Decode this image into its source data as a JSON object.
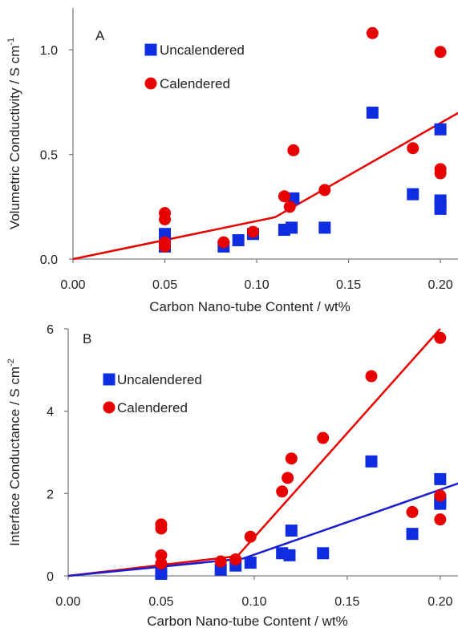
{
  "chart_data": [
    {
      "type": "scatter",
      "panel_label": "A",
      "xlabel": "Carbon Nano-tube Content / wt%",
      "ylabel": "Volumetric Conductivity / S cm-1",
      "ylabel_parts": {
        "main": "Volumetric Conductivity / S cm",
        "sup": "-1"
      },
      "xlim": [
        0,
        0.21
      ],
      "ylim": [
        0,
        1.2
      ],
      "x_ticks": [
        0,
        0.05,
        0.1,
        0.15,
        0.2
      ],
      "x_tick_labels": [
        "0.00",
        "0.05",
        "0.10",
        "0.15",
        "0.20"
      ],
      "y_ticks": [
        0,
        0.5,
        1.0
      ],
      "y_tick_labels": [
        "0.0",
        "0.5",
        "1.0"
      ],
      "grid": false,
      "legend_position": "top-left",
      "series": [
        {
          "name": "Uncalendered",
          "marker": "square",
          "color": "#0f2de0",
          "points": [
            [
              0.05,
              0.12
            ],
            [
              0.05,
              0.06
            ],
            [
              0.082,
              0.06
            ],
            [
              0.09,
              0.09
            ],
            [
              0.098,
              0.12
            ],
            [
              0.115,
              0.14
            ],
            [
              0.119,
              0.15
            ],
            [
              0.12,
              0.29
            ],
            [
              0.137,
              0.15
            ],
            [
              0.163,
              0.7
            ],
            [
              0.185,
              0.31
            ],
            [
              0.2,
              0.62
            ],
            [
              0.2,
              0.28
            ],
            [
              0.2,
              0.26
            ],
            [
              0.2,
              0.24
            ]
          ]
        },
        {
          "name": "Calendered",
          "marker": "circle",
          "color": "#e60000",
          "points": [
            [
              0.05,
              0.22
            ],
            [
              0.05,
              0.19
            ],
            [
              0.05,
              0.08
            ],
            [
              0.05,
              0.06
            ],
            [
              0.082,
              0.08
            ],
            [
              0.098,
              0.13
            ],
            [
              0.115,
              0.3
            ],
            [
              0.118,
              0.25
            ],
            [
              0.12,
              0.52
            ],
            [
              0.137,
              0.33
            ],
            [
              0.163,
              1.08
            ],
            [
              0.185,
              0.53
            ],
            [
              0.2,
              0.99
            ],
            [
              0.2,
              0.43
            ],
            [
              0.2,
              0.41
            ]
          ]
        }
      ],
      "fit_lines": [
        {
          "series": "Calendered",
          "color": "#e60000",
          "points": [
            [
              0,
              0
            ],
            [
              0.11,
              0.2
            ],
            [
              0.21,
              0.7
            ]
          ]
        }
      ]
    },
    {
      "type": "scatter",
      "panel_label": "B",
      "xlabel": "Carbon Nano-tube Content / wt%",
      "ylabel": "Interface Conductance / S cm-2",
      "ylabel_parts": {
        "main": "Interface Conductance / S cm",
        "sup": "-2"
      },
      "xlim": [
        0,
        0.21
      ],
      "ylim": [
        0,
        6
      ],
      "x_ticks": [
        0,
        0.05,
        0.1,
        0.15,
        0.2
      ],
      "x_tick_labels": [
        "0.00",
        "0.05",
        "0.10",
        "0.15",
        "0.20"
      ],
      "y_ticks": [
        0,
        2,
        4,
        6
      ],
      "y_tick_labels": [
        "0",
        "2",
        "4",
        "6"
      ],
      "grid": false,
      "legend_position": "top-left",
      "series": [
        {
          "name": "Uncalendered",
          "marker": "square",
          "color": "#0f2de0",
          "points": [
            [
              0.05,
              0.1
            ],
            [
              0.05,
              0.05
            ],
            [
              0.082,
              0.15
            ],
            [
              0.09,
              0.25
            ],
            [
              0.098,
              0.32
            ],
            [
              0.115,
              0.55
            ],
            [
              0.119,
              0.5
            ],
            [
              0.12,
              1.1
            ],
            [
              0.137,
              0.55
            ],
            [
              0.163,
              2.78
            ],
            [
              0.185,
              1.02
            ],
            [
              0.2,
              2.35
            ],
            [
              0.2,
              1.85
            ],
            [
              0.2,
              1.75
            ]
          ]
        },
        {
          "name": "Calendered",
          "marker": "circle",
          "color": "#e60000",
          "points": [
            [
              0.05,
              1.25
            ],
            [
              0.05,
              1.15
            ],
            [
              0.05,
              0.5
            ],
            [
              0.05,
              0.3
            ],
            [
              0.082,
              0.35
            ],
            [
              0.09,
              0.4
            ],
            [
              0.098,
              0.95
            ],
            [
              0.115,
              2.05
            ],
            [
              0.118,
              2.38
            ],
            [
              0.12,
              2.85
            ],
            [
              0.137,
              3.35
            ],
            [
              0.163,
              4.85
            ],
            [
              0.185,
              1.55
            ],
            [
              0.2,
              5.78
            ],
            [
              0.2,
              1.95
            ],
            [
              0.2,
              1.37
            ]
          ]
        }
      ],
      "fit_lines": [
        {
          "series": "Calendered",
          "color": "#e60000",
          "points": [
            [
              0,
              0
            ],
            [
              0.091,
              0.48
            ],
            [
              0.2,
              6.0
            ]
          ]
        },
        {
          "series": "Uncalendered",
          "color": "#1a1ad0",
          "points": [
            [
              0,
              0
            ],
            [
              0.094,
              0.42
            ],
            [
              0.21,
              2.25
            ]
          ]
        }
      ]
    }
  ]
}
